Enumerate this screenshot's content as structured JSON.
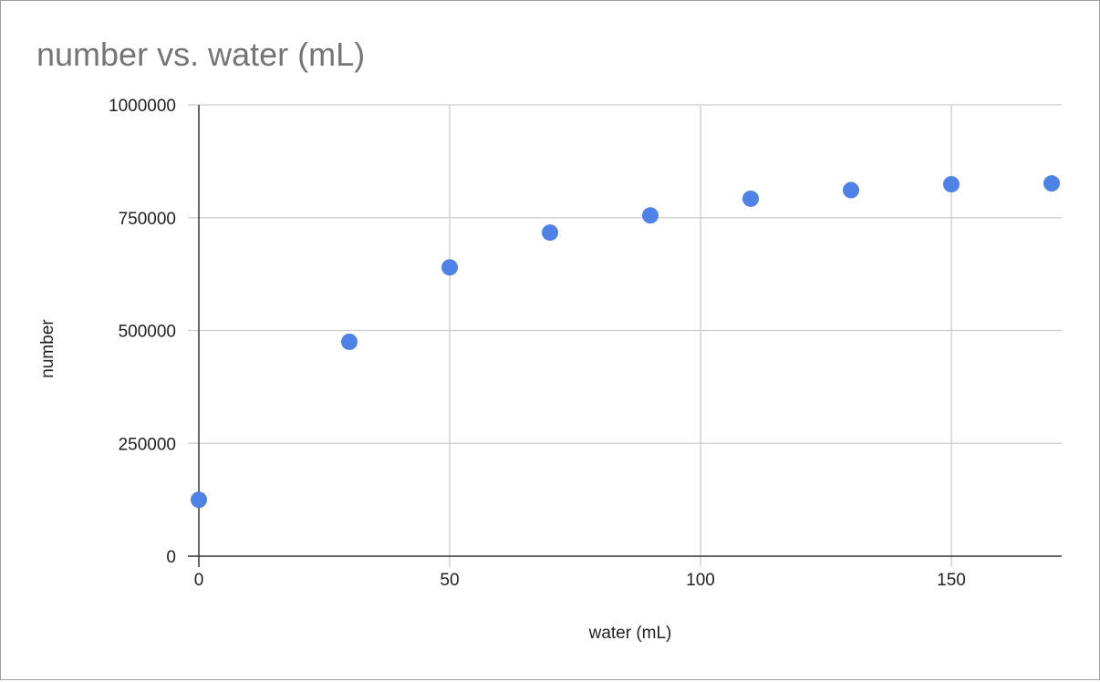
{
  "chart_data": {
    "type": "scatter",
    "title": "number vs. water (mL)",
    "xlabel": "water (mL)",
    "ylabel": "number",
    "xlim": [
      0,
      172
    ],
    "ylim": [
      0,
      1000000
    ],
    "x_ticks": [
      0,
      50,
      100,
      150
    ],
    "y_ticks": [
      0,
      250000,
      500000,
      750000,
      1000000
    ],
    "x_tick_labels": [
      "0",
      "50",
      "100",
      "150"
    ],
    "y_tick_labels": [
      "0",
      "250000",
      "500000",
      "750000",
      "1000000"
    ],
    "grid": true,
    "legend": "none",
    "series": [
      {
        "color": "#4f82e6",
        "x": [
          0,
          30,
          50,
          70,
          90,
          110,
          130,
          150,
          170
        ],
        "y": [
          125000,
          475000,
          640000,
          717000,
          755000,
          792000,
          811000,
          824000,
          826000
        ]
      }
    ]
  }
}
